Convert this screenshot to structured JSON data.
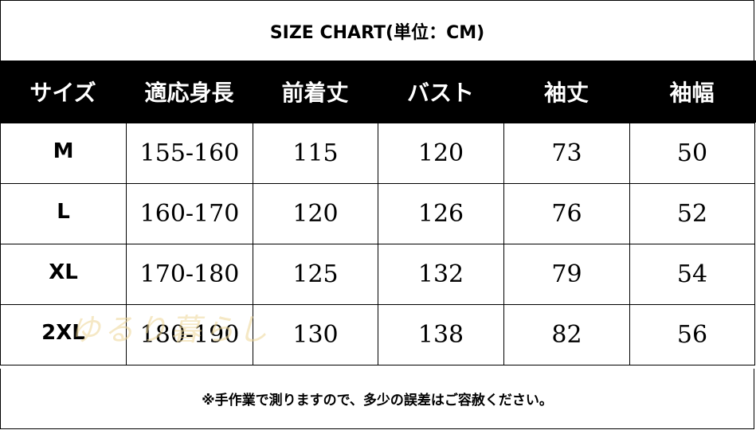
{
  "title": "SIZE CHART(単位：CM)",
  "headers": [
    "サイズ",
    "適応身長",
    "前着丈",
    "バスト",
    "袖丈",
    "袖幅"
  ],
  "rows": [
    {
      "size": "M",
      "height": "155-160",
      "length": "115",
      "bust": "120",
      "sleeve_length": "73",
      "sleeve_width": "50"
    },
    {
      "size": "L",
      "height": "160-170",
      "length": "120",
      "bust": "126",
      "sleeve_length": "76",
      "sleeve_width": "52"
    },
    {
      "size": "XL",
      "height": "170-180",
      "length": "125",
      "bust": "132",
      "sleeve_length": "79",
      "sleeve_width": "54"
    },
    {
      "size": "2XL",
      "height": "180-190",
      "length": "130",
      "bust": "138",
      "sleeve_length": "82",
      "sleeve_width": "56"
    }
  ],
  "note": "※手作業で測りますので、多少の誤差はご容赦ください。",
  "watermark": "ゆるり暮らし",
  "colors": {
    "header_bg": "#000000",
    "header_text": "#ffffff",
    "border": "#000000",
    "watermark": "#ecd696"
  }
}
